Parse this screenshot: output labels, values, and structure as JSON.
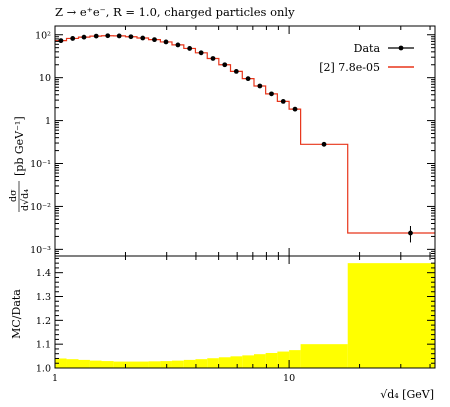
{
  "chart_data": [
    {
      "panel": "main",
      "type": "line",
      "title": "Z → e⁺e⁻, R = 1.0, charged particles only",
      "xlabel": "√d₄ [GeV]",
      "ylabel": "dσ/d√d₄ [pb GeV⁻¹]",
      "ylabel_parts": {
        "num": "dσ",
        "den": "d√d₄",
        "unit": "[pb GeV⁻¹]"
      },
      "xscale": "log",
      "yscale": "log",
      "xlim": [
        1,
        42
      ],
      "ylim": [
        0.0007,
        160
      ],
      "x_tick_labels": [
        "1",
        "10"
      ],
      "y_tick_labels": [
        "10⁻³",
        "10⁻²",
        "10⁻¹",
        "1",
        "10",
        "10²"
      ],
      "legend": {
        "placement": "top-right",
        "entries": [
          {
            "label": "Data",
            "style": "points",
            "color": "#000000"
          },
          {
            "label": "[2] 7.8e-05",
            "style": "line",
            "color": "#e8351a"
          }
        ]
      },
      "series": [
        {
          "name": "Data",
          "style": "points-with-errors",
          "x": [
            1.06,
            1.19,
            1.33,
            1.5,
            1.68,
            1.88,
            2.11,
            2.37,
            2.66,
            2.98,
            3.35,
            3.76,
            4.21,
            4.73,
            5.31,
            5.95,
            6.68,
            7.5,
            8.41,
            9.44,
            10.6,
            14.1,
            33.0
          ],
          "y": [
            73,
            82,
            88,
            93,
            95,
            94,
            90,
            84,
            77,
            68,
            58,
            48,
            38,
            28,
            20,
            14,
            9.5,
            6.4,
            4.2,
            2.8,
            1.85,
            0.28,
            0.0024
          ],
          "yerr_low": [
            1,
            1,
            1,
            1,
            1,
            1,
            1,
            1,
            1,
            1,
            1,
            1,
            1,
            0.5,
            0.4,
            0.3,
            0.2,
            0.15,
            0.1,
            0.08,
            0.06,
            0.015,
            0.00095
          ],
          "yerr_high": [
            1,
            1,
            1,
            1,
            1,
            1,
            1,
            1,
            1,
            1,
            1,
            1,
            1,
            0.5,
            0.4,
            0.3,
            0.2,
            0.15,
            0.1,
            0.08,
            0.06,
            0.015,
            0.0011
          ]
        },
        {
          "name": "[2] 7.8e-05",
          "style": "step-histogram",
          "color": "#e8351a",
          "bin_edges": [
            1.0,
            1.12,
            1.26,
            1.41,
            1.58,
            1.78,
            2.0,
            2.24,
            2.51,
            2.82,
            3.16,
            3.55,
            3.98,
            4.47,
            5.01,
            5.62,
            6.31,
            7.08,
            7.94,
            8.91,
            10.0,
            11.2,
            17.8,
            42.0
          ],
          "values": [
            73,
            82,
            88,
            93,
            95,
            94,
            90,
            84,
            77,
            68,
            58,
            48,
            38,
            28,
            20,
            14,
            9.5,
            6.4,
            4.2,
            2.8,
            1.85,
            0.28,
            0.0024
          ]
        }
      ]
    },
    {
      "panel": "ratio",
      "type": "area",
      "xlabel": "√d₄ [GeV]",
      "ylabel": "MC/Data",
      "xscale": "log",
      "xlim": [
        1,
        42
      ],
      "ylim": [
        1.0,
        1.47
      ],
      "x_tick_labels": [
        "1",
        "10"
      ],
      "y_tick_labels": [
        "1.0",
        "1.1",
        "1.2",
        "1.3",
        "1.4"
      ],
      "band_color": "#ffff00",
      "series": [
        {
          "name": "ratio-band",
          "style": "step-band",
          "bin_edges": [
            1.0,
            1.12,
            1.26,
            1.41,
            1.58,
            1.78,
            2.0,
            2.24,
            2.51,
            2.82,
            3.16,
            3.55,
            3.98,
            4.47,
            5.01,
            5.62,
            6.31,
            7.08,
            7.94,
            8.91,
            10.0,
            11.2,
            17.8,
            42.0
          ],
          "values": [
            1.04,
            1.037,
            1.034,
            1.031,
            1.029,
            1.027,
            1.027,
            1.027,
            1.028,
            1.029,
            1.031,
            1.034,
            1.037,
            1.041,
            1.045,
            1.049,
            1.053,
            1.058,
            1.063,
            1.069,
            1.075,
            1.1,
            1.44
          ]
        }
      ]
    }
  ]
}
